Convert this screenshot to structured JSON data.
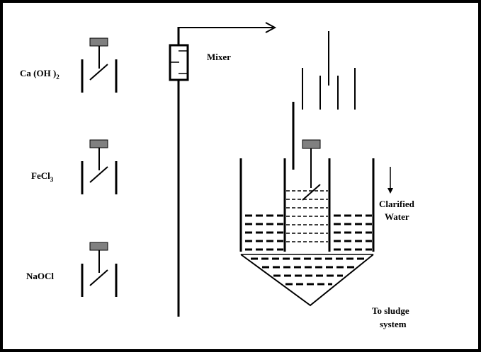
{
  "chemicals": [
    {
      "name": "Ca (OH )",
      "subscript": "2"
    },
    {
      "name": "FeCl",
      "subscript": "3"
    },
    {
      "name": "NaOCl",
      "subscript": ""
    }
  ],
  "mixer_label": "Mixer",
  "clarified_label_line1": "Clarified",
  "clarified_label_line2": "Water",
  "sludge_label_line1": "To sludge",
  "sludge_label_line2": "system",
  "colors": {
    "stroke": "#000000",
    "motor": "#808080",
    "background": "#ffffff"
  }
}
